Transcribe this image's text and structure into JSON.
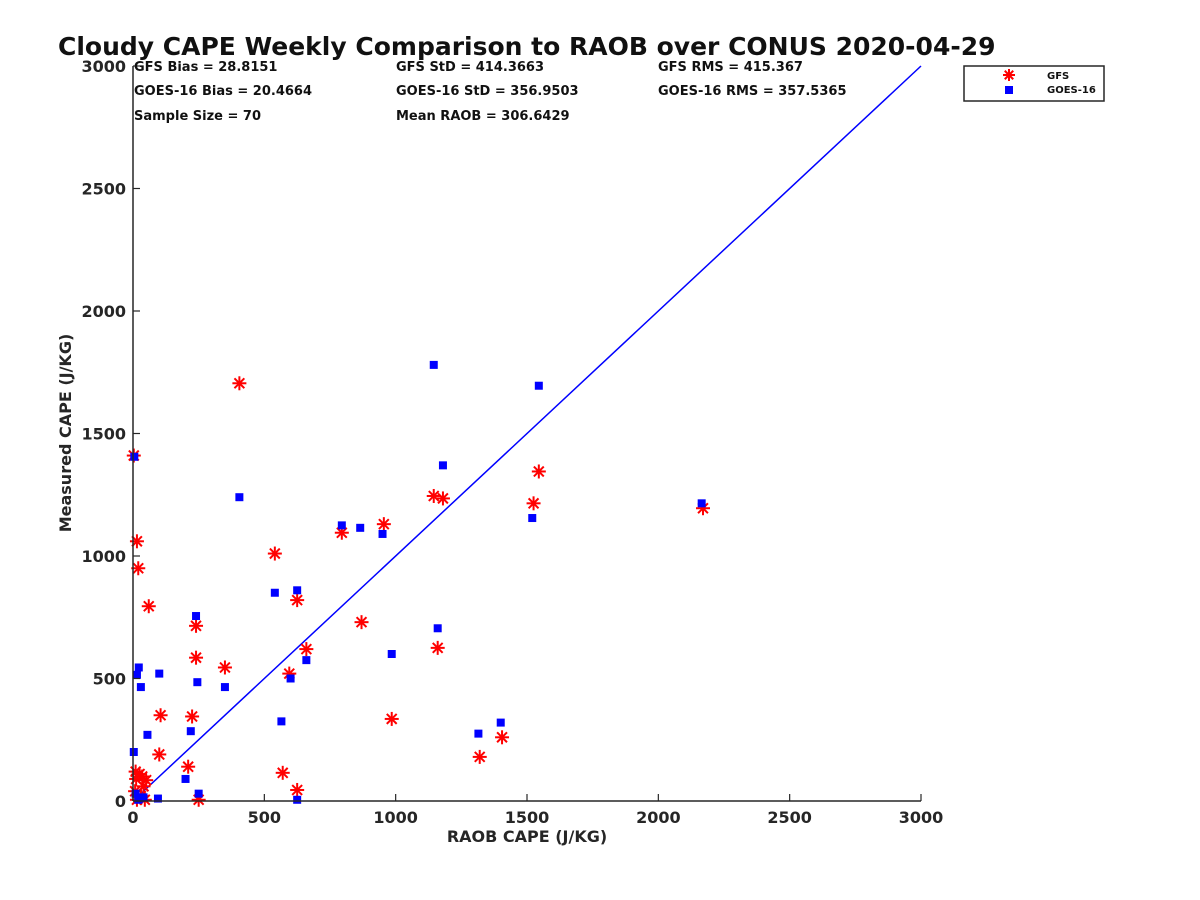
{
  "chart_data": {
    "type": "scatter",
    "title": "Cloudy CAPE Weekly Comparison to RAOB over CONUS 2020-04-29",
    "xlabel": "RAOB CAPE (J/KG)",
    "ylabel": "Measured CAPE (J/KG)",
    "xlim": [
      0,
      3000
    ],
    "ylim": [
      0,
      3000
    ],
    "xticks": [
      "0",
      "500",
      "1000",
      "1500",
      "2000",
      "2500",
      "3000"
    ],
    "yticks": [
      "0",
      "500",
      "1000",
      "1500",
      "2000",
      "2500",
      "3000"
    ],
    "grid": false,
    "legend_position": "top-right, outside plot",
    "stats": [
      [
        "GFS Bias = 28.8151",
        "GFS StD = 414.3663",
        "GFS RMS = 415.367"
      ],
      [
        "GOES-16 Bias = 20.4664",
        "GOES-16 StD = 356.9503",
        "GOES-16 RMS = 357.5365"
      ],
      [
        "Sample Size = 70",
        "Mean RAOB = 306.6429",
        ""
      ]
    ],
    "reference_line": {
      "x": [
        0,
        3000
      ],
      "y": [
        0,
        3000
      ],
      "color": "#0000ff"
    },
    "series": [
      {
        "name": "GFS",
        "marker": "asterisk",
        "color": "#ff0000",
        "points": [
          [
            3,
            1410
          ],
          [
            15,
            1060
          ],
          [
            20,
            950
          ],
          [
            60,
            795
          ],
          [
            10,
            120
          ],
          [
            25,
            110
          ],
          [
            12,
            90
          ],
          [
            35,
            100
          ],
          [
            50,
            85
          ],
          [
            40,
            60
          ],
          [
            8,
            40
          ],
          [
            30,
            20
          ],
          [
            15,
            5
          ],
          [
            45,
            5
          ],
          [
            100,
            190
          ],
          [
            105,
            350
          ],
          [
            210,
            140
          ],
          [
            225,
            345
          ],
          [
            240,
            585
          ],
          [
            240,
            715
          ],
          [
            250,
            5
          ],
          [
            350,
            545
          ],
          [
            405,
            1705
          ],
          [
            540,
            1010
          ],
          [
            570,
            115
          ],
          [
            595,
            520
          ],
          [
            625,
            820
          ],
          [
            625,
            45
          ],
          [
            660,
            620
          ],
          [
            795,
            1095
          ],
          [
            870,
            730
          ],
          [
            955,
            1130
          ],
          [
            985,
            335
          ],
          [
            1145,
            1245
          ],
          [
            1160,
            625
          ],
          [
            1180,
            1235
          ],
          [
            1320,
            180
          ],
          [
            1405,
            260
          ],
          [
            1525,
            1215
          ],
          [
            1545,
            1345
          ],
          [
            2170,
            1195
          ]
        ]
      },
      {
        "name": "GOES-16",
        "marker": "square",
        "color": "#0000ff",
        "points": [
          [
            5,
            1405
          ],
          [
            3,
            200
          ],
          [
            10,
            30
          ],
          [
            15,
            515
          ],
          [
            22,
            545
          ],
          [
            30,
            465
          ],
          [
            20,
            5
          ],
          [
            25,
            10
          ],
          [
            40,
            15
          ],
          [
            55,
            270
          ],
          [
            100,
            520
          ],
          [
            95,
            10
          ],
          [
            200,
            90
          ],
          [
            220,
            285
          ],
          [
            240,
            755
          ],
          [
            245,
            485
          ],
          [
            250,
            30
          ],
          [
            350,
            465
          ],
          [
            405,
            1240
          ],
          [
            540,
            850
          ],
          [
            565,
            325
          ],
          [
            600,
            500
          ],
          [
            625,
            860
          ],
          [
            625,
            5
          ],
          [
            660,
            575
          ],
          [
            795,
            1125
          ],
          [
            865,
            1115
          ],
          [
            950,
            1090
          ],
          [
            985,
            600
          ],
          [
            1145,
            1780
          ],
          [
            1160,
            705
          ],
          [
            1180,
            1370
          ],
          [
            1315,
            275
          ],
          [
            1400,
            320
          ],
          [
            1520,
            1155
          ],
          [
            1545,
            1695
          ],
          [
            2165,
            1215
          ]
        ]
      }
    ]
  }
}
